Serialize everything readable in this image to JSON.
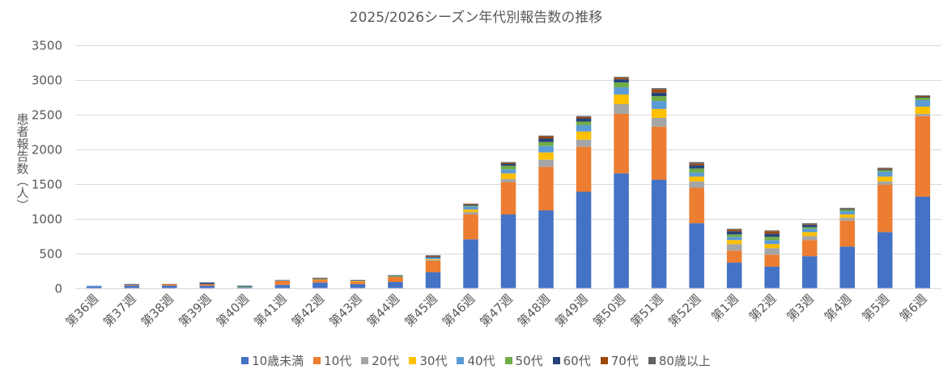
{
  "chart_data": {
    "type": "bar",
    "stacked": true,
    "title": "2025/2026シーズン年代別報告数の推移",
    "xlabel": "",
    "ylabel": "患者報告数（人）",
    "ylim": [
      0,
      3500
    ],
    "yticks": [
      0,
      500,
      1000,
      1500,
      2000,
      2500,
      3000,
      3500
    ],
    "grid": true,
    "legend_position": "bottom",
    "categories": [
      "第36週",
      "第37週",
      "第38週",
      "第39週",
      "第40週",
      "第41週",
      "第42週",
      "第43週",
      "第44週",
      "第45週",
      "第46週",
      "第47週",
      "第48週",
      "第49週",
      "第50週",
      "第51週",
      "第52週",
      "第1週",
      "第2週",
      "第3週",
      "第4週",
      "第5週",
      "第6週"
    ],
    "series": [
      {
        "name": "10歳未満",
        "color": "#4472C4",
        "values": [
          23,
          35,
          35,
          35,
          12,
          46,
          81,
          58,
          89,
          228,
          702,
          1060,
          1118,
          1385,
          1651,
          1559,
          934,
          367,
          309,
          459,
          598,
          806,
          1316
        ]
      },
      {
        "name": "10代",
        "color": "#ED7D31",
        "values": [
          0,
          11,
          12,
          23,
          0,
          58,
          35,
          35,
          73,
          165,
          358,
          464,
          626,
          648,
          856,
          763,
          509,
          173,
          173,
          232,
          370,
          683,
          1157
        ]
      },
      {
        "name": "20代",
        "color": "#A5A5A5",
        "values": [
          0,
          0,
          0,
          0,
          0,
          4,
          0,
          0,
          0,
          12,
          35,
          46,
          104,
          104,
          139,
          127,
          92,
          93,
          93,
          58,
          46,
          46,
          34
        ]
      },
      {
        "name": "30代",
        "color": "#FFC000",
        "values": [
          0,
          0,
          0,
          0,
          0,
          0,
          11,
          11,
          0,
          12,
          35,
          81,
          104,
          116,
          139,
          128,
          70,
          58,
          58,
          57,
          46,
          70,
          104
        ]
      },
      {
        "name": "40代",
        "color": "#5B9BD5",
        "values": [
          12,
          0,
          0,
          0,
          0,
          0,
          0,
          0,
          0,
          23,
          43,
          58,
          92,
          92,
          104,
          115,
          58,
          46,
          58,
          47,
          47,
          69,
          93
        ]
      },
      {
        "name": "50代",
        "color": "#70AD47",
        "values": [
          0,
          0,
          0,
          0,
          11,
          0,
          0,
          0,
          12,
          0,
          12,
          50,
          58,
          50,
          69,
          70,
          58,
          35,
          46,
          23,
          23,
          23,
          35
        ]
      },
      {
        "name": "60代",
        "color": "#264478",
        "values": [
          0,
          12,
          0,
          23,
          12,
          8,
          12,
          12,
          11,
          11,
          15,
          27,
          50,
          47,
          46,
          50,
          46,
          46,
          46,
          35,
          12,
          12,
          11
        ]
      },
      {
        "name": "70代",
        "color": "#9E480E",
        "values": [
          0,
          0,
          11,
          0,
          0,
          0,
          6,
          0,
          0,
          12,
          12,
          12,
          31,
          19,
          23,
          46,
          23,
          23,
          35,
          11,
          5,
          12,
          12
        ]
      },
      {
        "name": "80歳以上",
        "color": "#636363",
        "values": [
          0,
          0,
          0,
          0,
          0,
          0,
          5,
          0,
          0,
          11,
          3,
          15,
          12,
          15,
          12,
          19,
          23,
          12,
          12,
          12,
          6,
          11,
          11
        ]
      }
    ]
  }
}
